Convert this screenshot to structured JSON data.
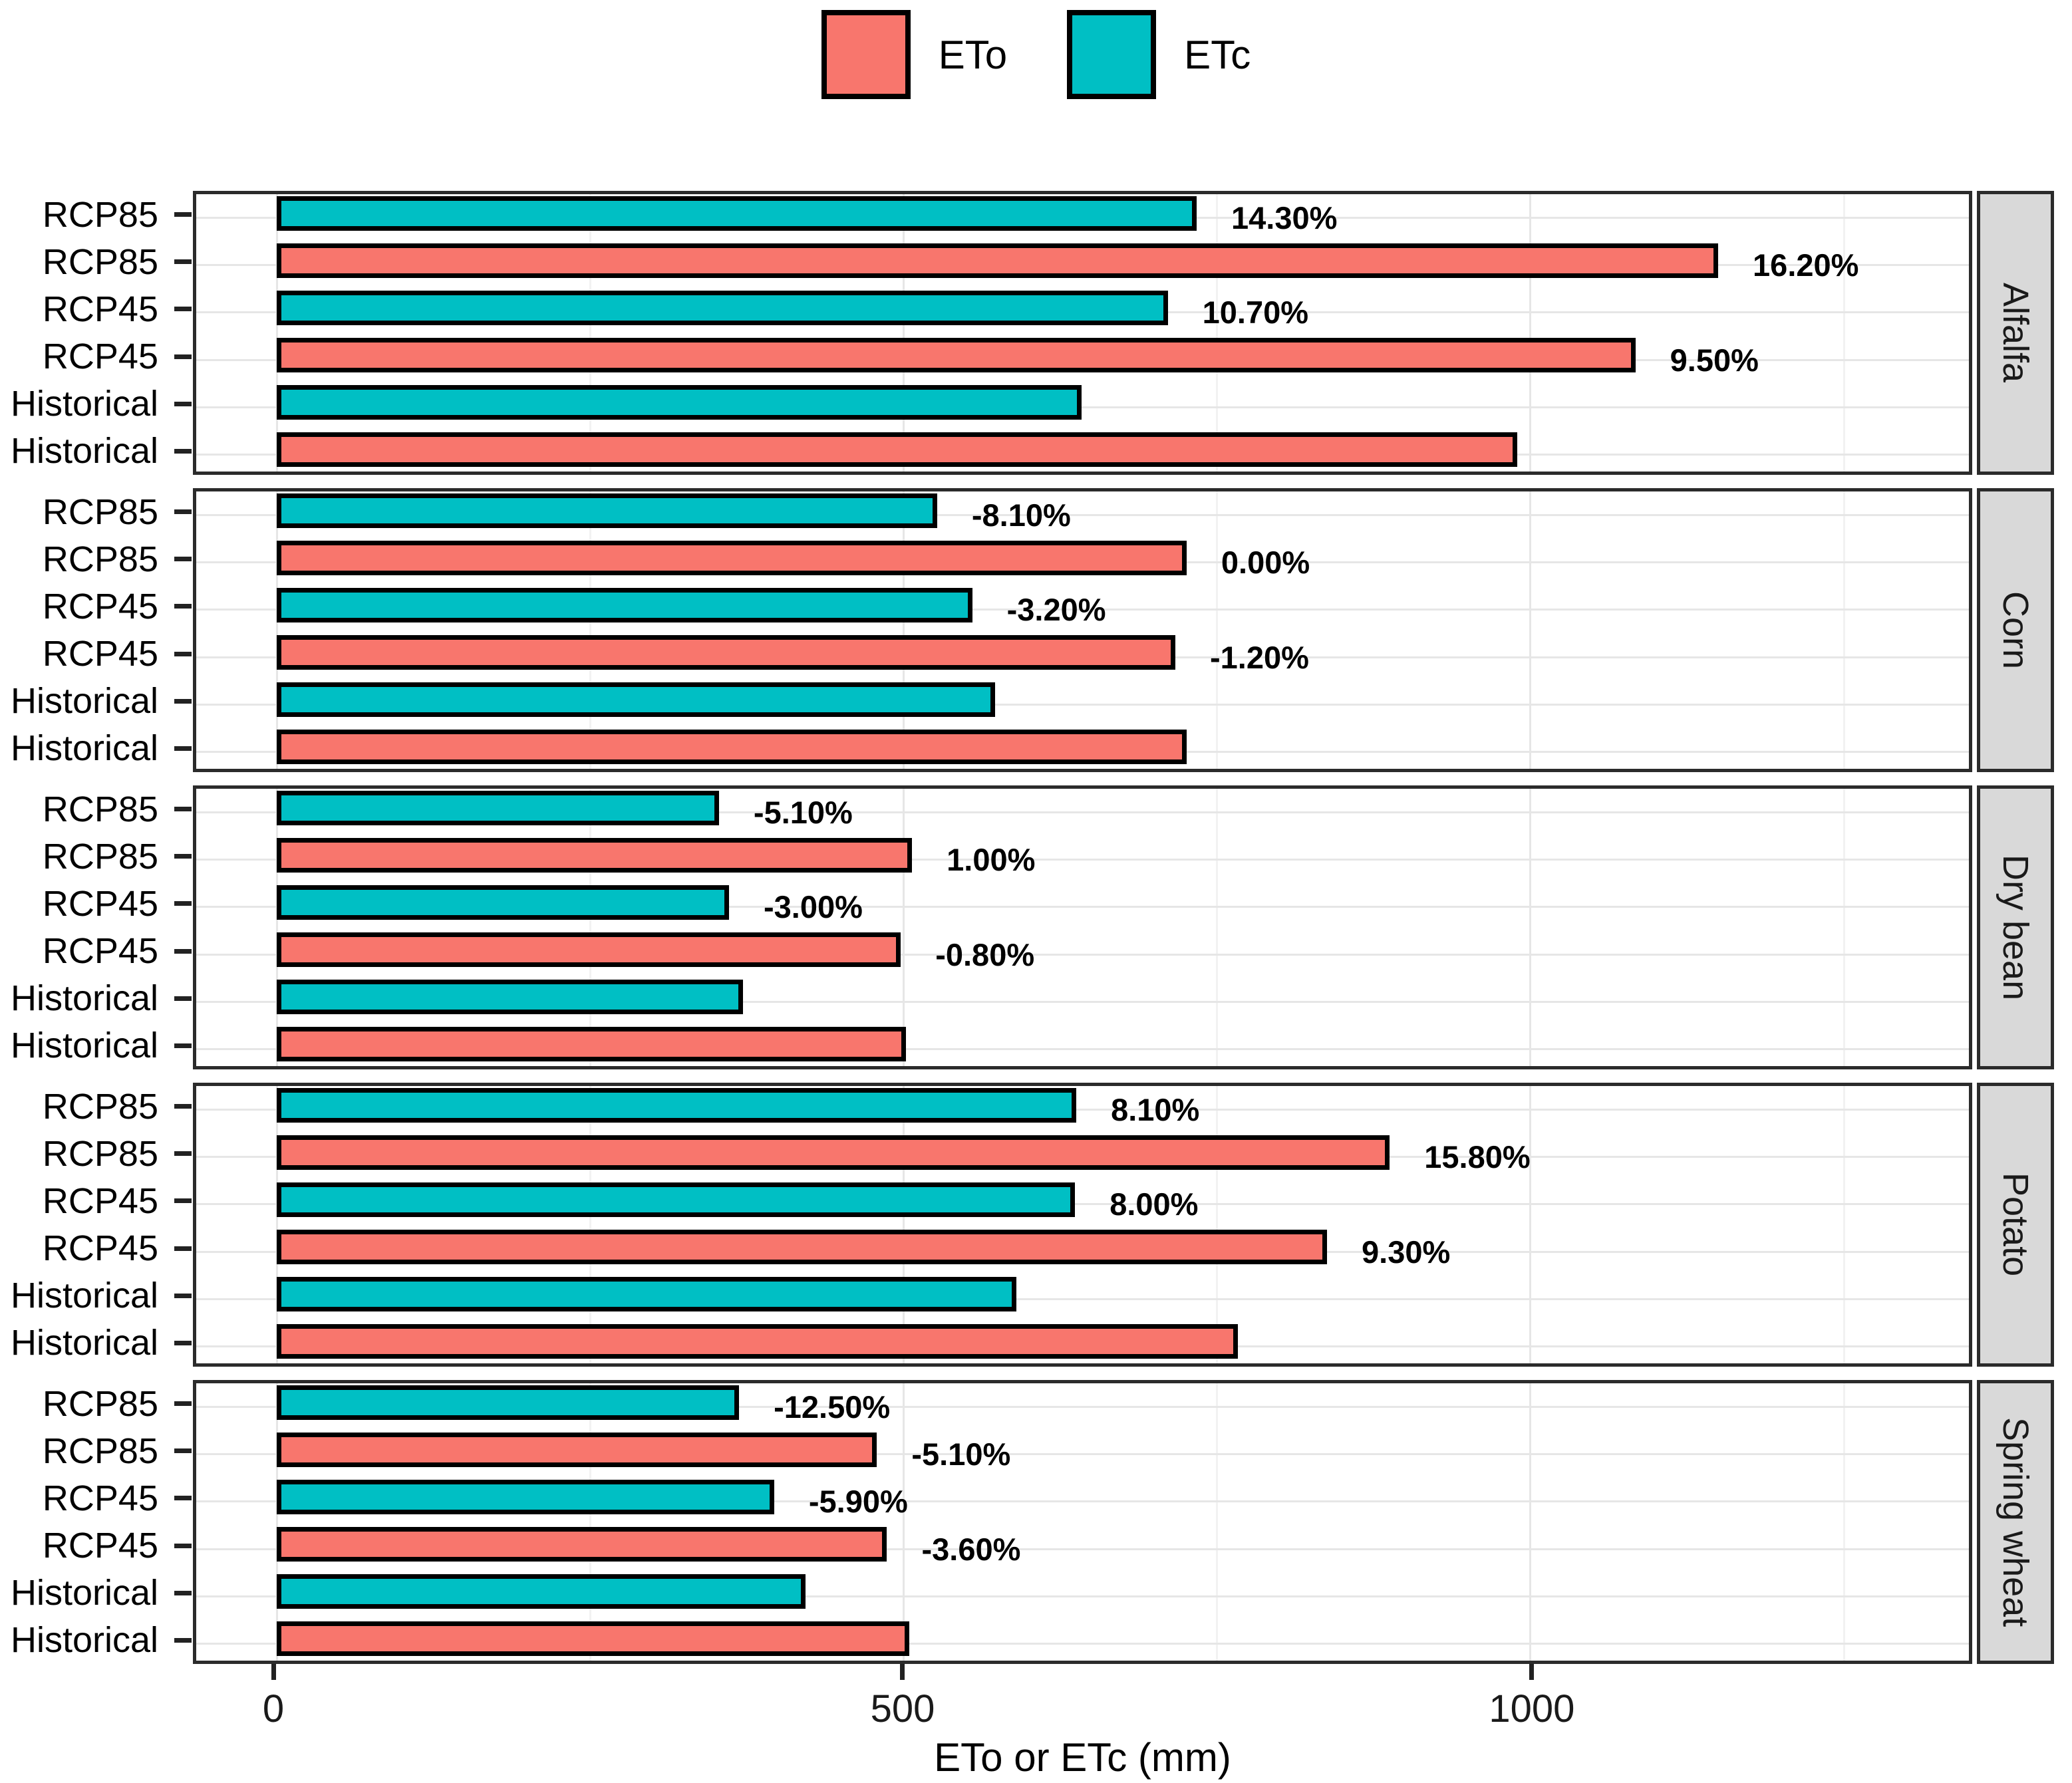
{
  "legend": {
    "items": [
      {
        "label": "ETo",
        "color": "#F8766D"
      },
      {
        "label": "ETc",
        "color": "#00BFC4"
      }
    ]
  },
  "axis": {
    "title": "ETo or ETc (mm)",
    "ticks": [
      0,
      500,
      1000
    ],
    "domain": [
      -64,
      1350
    ],
    "gridlines_major": [
      0,
      500,
      1000
    ],
    "gridlines_minor": [
      250,
      750,
      1250
    ]
  },
  "colors": {
    "ETo": "#F8766D",
    "ETc": "#00BFC4",
    "bar_outline": "#000000",
    "strip_bg": "#d9d9d9",
    "panel_border": "#2b2b2b",
    "grid_major": "#e6e6e6",
    "grid_minor": "#f2f2f2"
  },
  "chart_data": {
    "type": "bar",
    "orientation": "horizontal",
    "title": "",
    "xlabel": "ETo or ETc (mm)",
    "ylabel": "",
    "xlim": [
      -64,
      1350
    ],
    "grid": true,
    "legend_position": "top",
    "row_order_top_to_bottom": [
      "RCP85",
      "RCP85",
      "RCP45",
      "RCP45",
      "Historical",
      "Historical"
    ],
    "facets": [
      {
        "name": "Alfalfa",
        "bars": [
          {
            "scenario": "RCP85",
            "series": "ETc",
            "value": 734,
            "label": "14.30%"
          },
          {
            "scenario": "RCP85",
            "series": "ETo",
            "value": 1150,
            "label": "16.20%"
          },
          {
            "scenario": "RCP45",
            "series": "ETc",
            "value": 711,
            "label": "10.70%"
          },
          {
            "scenario": "RCP45",
            "series": "ETo",
            "value": 1084,
            "label": "9.50%"
          },
          {
            "scenario": "Historical",
            "series": "ETc",
            "value": 642,
            "label": ""
          },
          {
            "scenario": "Historical",
            "series": "ETo",
            "value": 990,
            "label": ""
          }
        ]
      },
      {
        "name": "Corn",
        "bars": [
          {
            "scenario": "RCP85",
            "series": "ETc",
            "value": 527,
            "label": "-8.10%"
          },
          {
            "scenario": "RCP85",
            "series": "ETo",
            "value": 726,
            "label": "0.00%"
          },
          {
            "scenario": "RCP45",
            "series": "ETc",
            "value": 555,
            "label": "-3.20%"
          },
          {
            "scenario": "RCP45",
            "series": "ETo",
            "value": 717,
            "label": "-1.20%"
          },
          {
            "scenario": "Historical",
            "series": "ETc",
            "value": 573,
            "label": ""
          },
          {
            "scenario": "Historical",
            "series": "ETo",
            "value": 726,
            "label": ""
          }
        ]
      },
      {
        "name": "Dry bean",
        "bars": [
          {
            "scenario": "RCP85",
            "series": "ETc",
            "value": 353,
            "label": "-5.10%"
          },
          {
            "scenario": "RCP85",
            "series": "ETo",
            "value": 507,
            "label": "1.00%"
          },
          {
            "scenario": "RCP45",
            "series": "ETc",
            "value": 361,
            "label": "-3.00%"
          },
          {
            "scenario": "RCP45",
            "series": "ETo",
            "value": 498,
            "label": "-0.80%"
          },
          {
            "scenario": "Historical",
            "series": "ETc",
            "value": 372,
            "label": ""
          },
          {
            "scenario": "Historical",
            "series": "ETo",
            "value": 502,
            "label": ""
          }
        ]
      },
      {
        "name": "Potato",
        "bars": [
          {
            "scenario": "RCP85",
            "series": "ETc",
            "value": 638,
            "label": "8.10%"
          },
          {
            "scenario": "RCP85",
            "series": "ETo",
            "value": 888,
            "label": "15.80%"
          },
          {
            "scenario": "RCP45",
            "series": "ETc",
            "value": 637,
            "label": "8.00%"
          },
          {
            "scenario": "RCP45",
            "series": "ETo",
            "value": 838,
            "label": "9.30%"
          },
          {
            "scenario": "Historical",
            "series": "ETc",
            "value": 590,
            "label": ""
          },
          {
            "scenario": "Historical",
            "series": "ETo",
            "value": 767,
            "label": ""
          }
        ]
      },
      {
        "name": "Spring wheat",
        "bars": [
          {
            "scenario": "RCP85",
            "series": "ETc",
            "value": 369,
            "label": "-12.50%"
          },
          {
            "scenario": "RCP85",
            "series": "ETo",
            "value": 479,
            "label": "-5.10%"
          },
          {
            "scenario": "RCP45",
            "series": "ETc",
            "value": 397,
            "label": "-5.90%"
          },
          {
            "scenario": "RCP45",
            "series": "ETo",
            "value": 487,
            "label": "-3.60%"
          },
          {
            "scenario": "Historical",
            "series": "ETc",
            "value": 422,
            "label": ""
          },
          {
            "scenario": "Historical",
            "series": "ETo",
            "value": 505,
            "label": ""
          }
        ]
      }
    ]
  }
}
